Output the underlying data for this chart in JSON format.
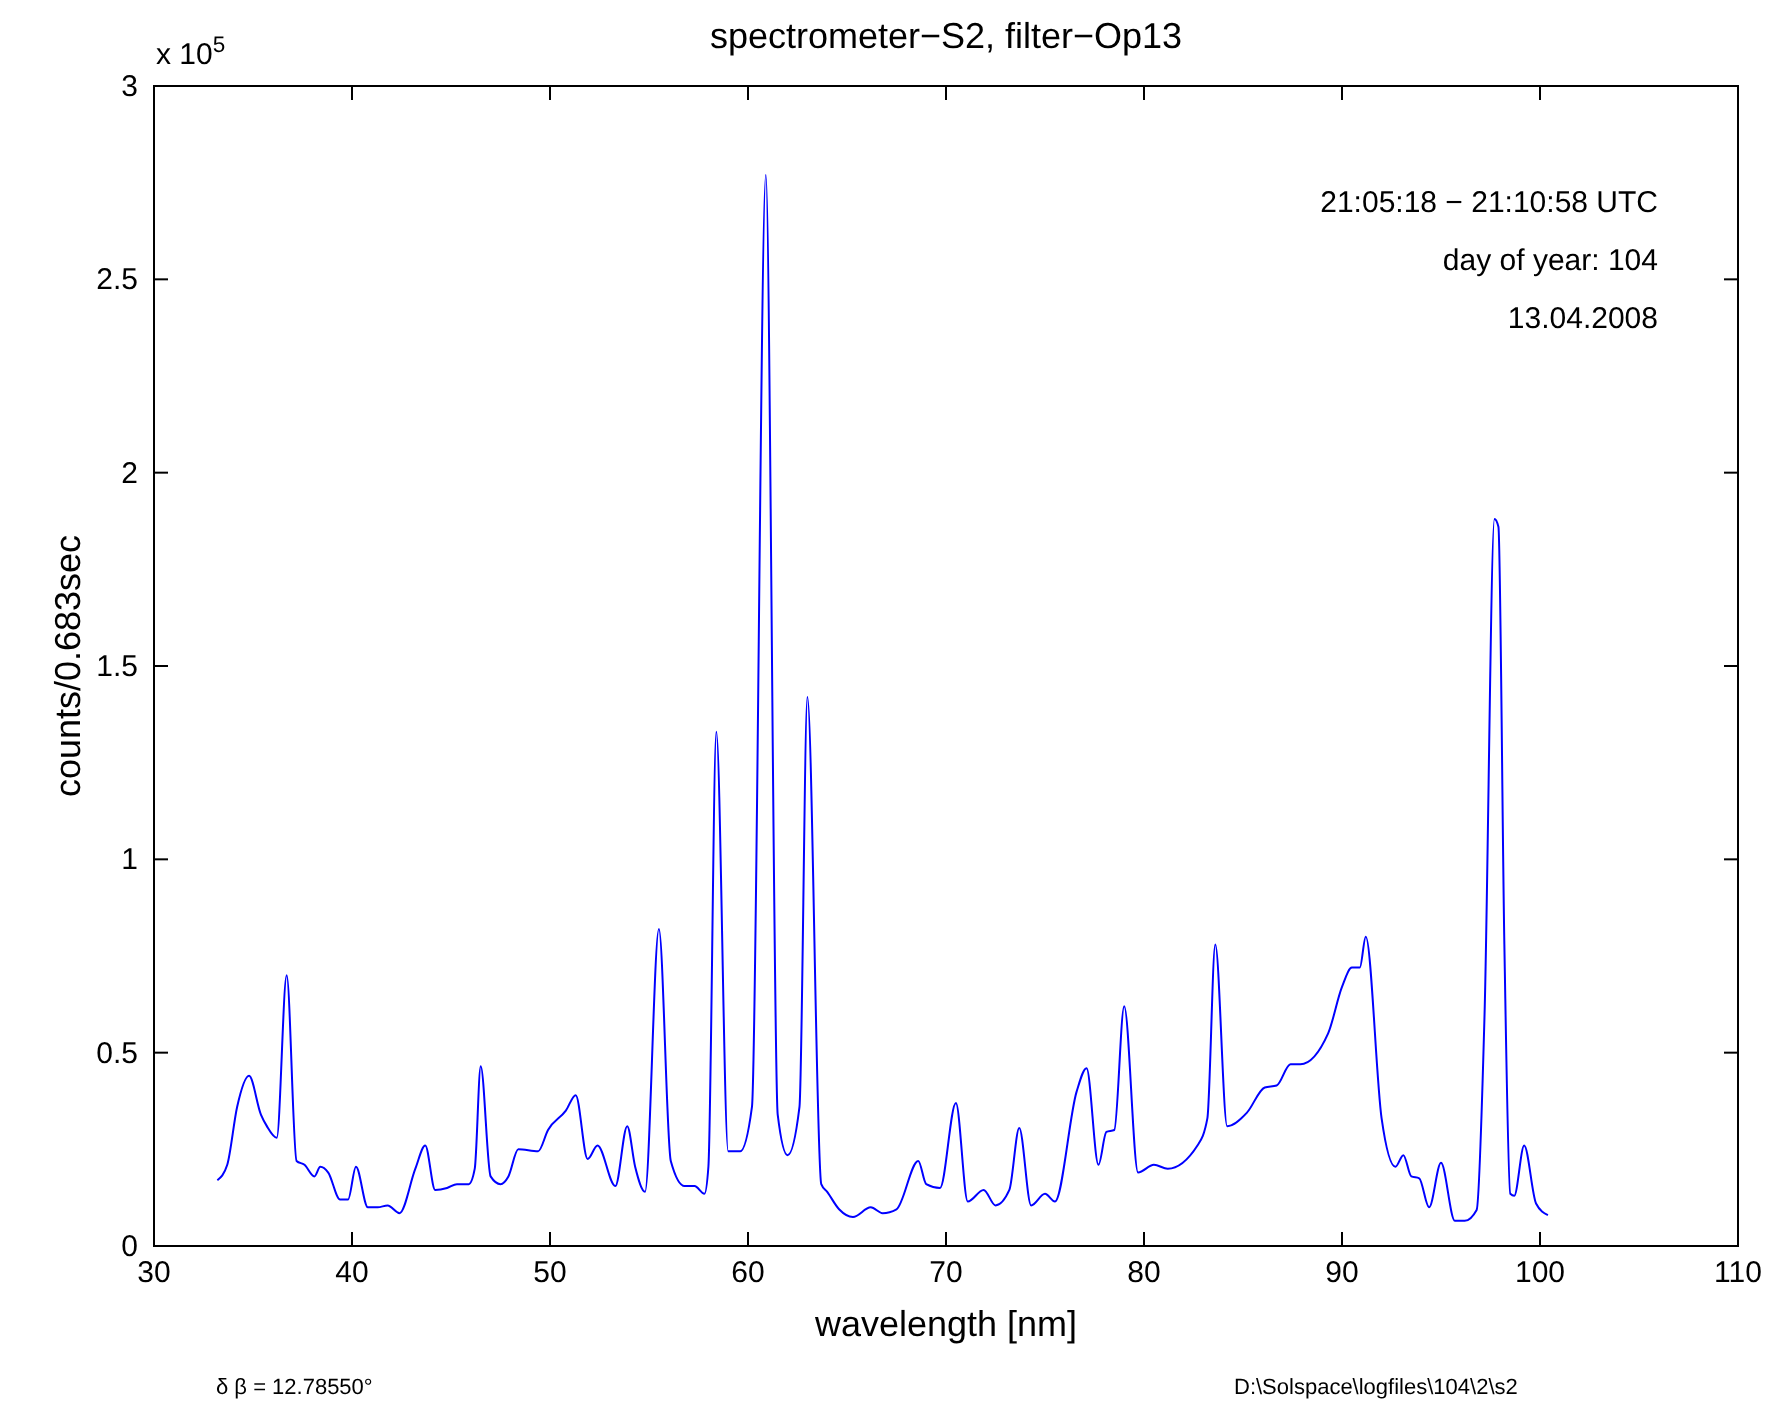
{
  "chart_data": {
    "type": "line",
    "title": "spectrometer−S2, filter−Op13",
    "xlabel": "wavelength [nm]",
    "ylabel": "counts/0.683sec",
    "annotations": [
      "21:05:18 − 21:10:58 UTC",
      "day of year: 104",
      "13.04.2008",
      "δ β = 12.78550°",
      "D:\\Solspace\\logfiles\\104\\2\\s2",
      "x 10$^{5}$"
    ],
    "xlim": [
      30,
      110
    ],
    "xticks": [
      30,
      40,
      50,
      60,
      70,
      80,
      90,
      100,
      110
    ],
    "ylim": [
      0,
      3
    ],
    "yticks": [
      0,
      0.5,
      1,
      1.5,
      2,
      2.5,
      3
    ],
    "series": [
      {
        "color": "#0000ff",
        "x": [
          33.2,
          33.7,
          34.2,
          34.8,
          35.4,
          35.7,
          36.2,
          36.7,
          37.2,
          37.6,
          38.1,
          38.4,
          38.8,
          39.4,
          39.8,
          40.2,
          40.8,
          41.3,
          41.8,
          42.4,
          43.2,
          43.7,
          44.2,
          44.8,
          45.3,
          45.9,
          46.2,
          46.5,
          47.0,
          47.5,
          47.9,
          48.4,
          49.4,
          49.9,
          50.8,
          51.3,
          51.9,
          52.4,
          53.3,
          53.9,
          54.3,
          54.8,
          55.5,
          56.1,
          56.8,
          57.3,
          57.8,
          58.0,
          58.4,
          59.0,
          59.6,
          60.2,
          60.9,
          61.5,
          62.0,
          62.6,
          63.0,
          63.7,
          64.0,
          64.6,
          65.3,
          66.2,
          66.8,
          67.5,
          68.6,
          69.0,
          69.7,
          70.5,
          71.1,
          71.9,
          72.5,
          73.2,
          73.7,
          74.3,
          75.0,
          75.5,
          76.6,
          77.1,
          77.7,
          78.1,
          78.5,
          79.0,
          79.7,
          80.5,
          81.2,
          82.7,
          83.2,
          83.6,
          84.2,
          85.2,
          86.1,
          86.7,
          87.4,
          87.9,
          89.3,
          90.0,
          90.5,
          90.9,
          91.2,
          92.0,
          92.7,
          93.1,
          93.5,
          93.9,
          94.4,
          95.0,
          95.7,
          96.2,
          96.8,
          97.2,
          97.7,
          97.9,
          98.2,
          98.5,
          98.7,
          99.2,
          99.8,
          100.4
        ],
        "values": [
          0.17,
          0.21,
          0.36,
          0.44,
          0.34,
          0.31,
          0.28,
          0.7,
          0.22,
          0.21,
          0.18,
          0.205,
          0.19,
          0.12,
          0.12,
          0.205,
          0.1,
          0.1,
          0.105,
          0.085,
          0.2,
          0.26,
          0.145,
          0.15,
          0.16,
          0.16,
          0.2,
          0.465,
          0.18,
          0.16,
          0.18,
          0.25,
          0.245,
          0.3,
          0.35,
          0.39,
          0.225,
          0.26,
          0.155,
          0.31,
          0.205,
          0.14,
          0.82,
          0.22,
          0.155,
          0.155,
          0.135,
          0.205,
          1.33,
          0.245,
          0.245,
          0.36,
          2.77,
          0.34,
          0.235,
          0.36,
          1.42,
          0.16,
          0.14,
          0.095,
          0.075,
          0.1,
          0.085,
          0.095,
          0.22,
          0.16,
          0.15,
          0.37,
          0.115,
          0.145,
          0.105,
          0.145,
          0.305,
          0.105,
          0.135,
          0.115,
          0.4,
          0.46,
          0.21,
          0.295,
          0.3,
          0.62,
          0.19,
          0.21,
          0.2,
          0.26,
          0.33,
          0.78,
          0.31,
          0.345,
          0.41,
          0.415,
          0.47,
          0.47,
          0.55,
          0.67,
          0.72,
          0.72,
          0.8,
          0.33,
          0.205,
          0.235,
          0.18,
          0.175,
          0.1,
          0.215,
          0.065,
          0.065,
          0.093,
          0.6,
          1.88,
          1.86,
          0.78,
          0.135,
          0.13,
          0.26,
          0.11,
          0.08
        ]
      }
    ]
  }
}
